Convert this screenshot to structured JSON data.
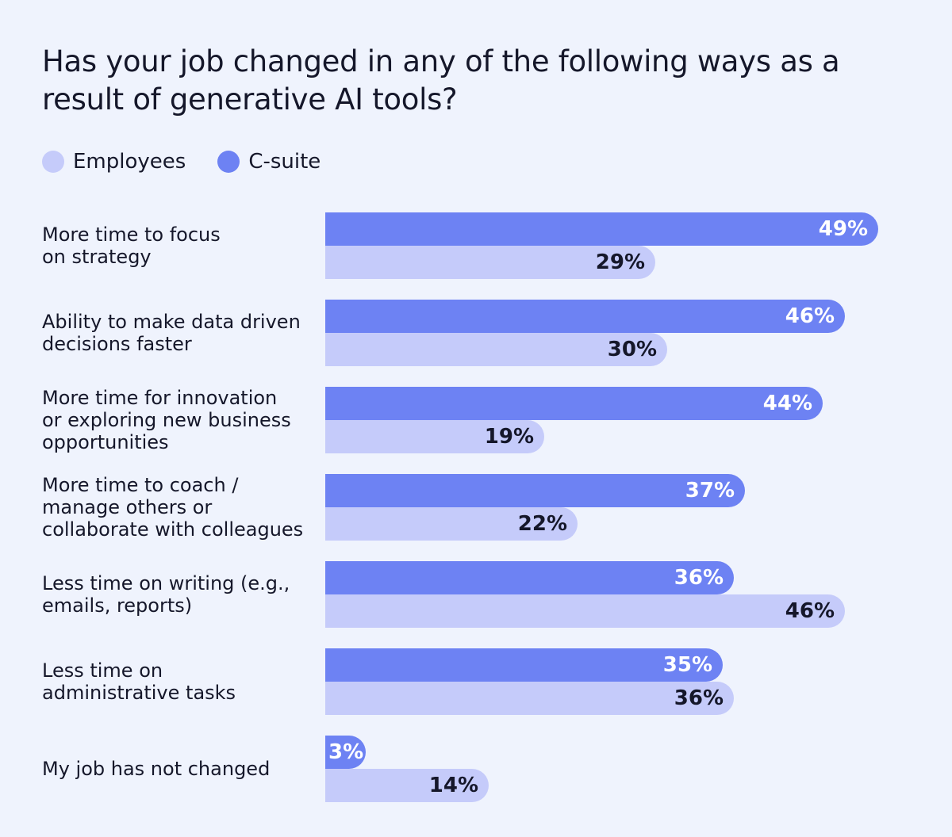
{
  "colors": {
    "background": "#eff3fd",
    "employees": "#c5cbfa",
    "csuite": "#6d82f3",
    "employees_text": "#15172a",
    "csuite_text": "#ffffff"
  },
  "chart_data": {
    "type": "bar",
    "orientation": "horizontal",
    "title": "Has your job changed in any of the following ways as a result of generative AI tools?",
    "legend_position": "top-left",
    "xlim": [
      0,
      50
    ],
    "xlabel": "",
    "ylabel": "",
    "unit": "%",
    "categories": [
      "More time to focus\non strategy",
      "Ability to make data driven\ndecisions faster",
      "More time for innovation\nor exploring new business\nopportunities",
      "More time to coach /\nmanage others or\ncollaborate with colleagues",
      "Less time on writing (e.g.,\nemails, reports)",
      "Less time on\nadministrative tasks",
      "My job has not changed"
    ],
    "series": [
      {
        "name": "C-suite",
        "key": "csuite",
        "values": [
          49,
          46,
          44,
          37,
          36,
          35,
          3
        ],
        "labels": [
          "49%",
          "46%",
          "44%",
          "37%",
          "36%",
          "35%",
          "3%"
        ]
      },
      {
        "name": "Employees",
        "key": "employees",
        "values": [
          29,
          30,
          19,
          22,
          46,
          36,
          14
        ],
        "labels": [
          "29%",
          "30%",
          "19%",
          "22%",
          "46%",
          "36%",
          "14%"
        ]
      }
    ]
  },
  "legend": [
    {
      "key": "employees",
      "label": "Employees"
    },
    {
      "key": "csuite",
      "label": "C-suite"
    }
  ]
}
